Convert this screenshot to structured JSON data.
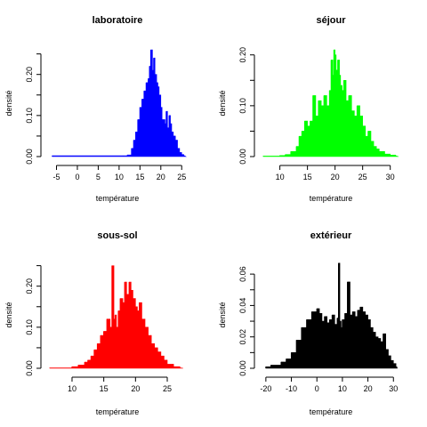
{
  "chart_data": [
    {
      "type": "histogram",
      "title": "laboratoire",
      "xlabel": "température",
      "ylabel": "densité",
      "color": "#0000ff",
      "xlim": [
        -6.6,
        25.8
      ],
      "ylim": [
        0,
        0.26
      ],
      "xticks": [
        -5,
        0,
        5,
        10,
        15,
        20,
        25
      ],
      "yticks": [
        0.0,
        0.1,
        0.2
      ],
      "yticks_minor": [
        0.05,
        0.15,
        0.25
      ],
      "x": [
        -6,
        11,
        12,
        13,
        13.5,
        14,
        14.5,
        15,
        15.5,
        16,
        16.5,
        17,
        17.3,
        17.6,
        18,
        18.3,
        18.6,
        19,
        19.3,
        19.6,
        20,
        20.3,
        20.6,
        21,
        21.3,
        21.6,
        22,
        22.3,
        22.6,
        23,
        23.5,
        24,
        24.5,
        25,
        25.5
      ],
      "y": [
        0.002,
        0.002,
        0.004,
        0.02,
        0.04,
        0.06,
        0.09,
        0.12,
        0.14,
        0.16,
        0.18,
        0.19,
        0.22,
        0.26,
        0.21,
        0.24,
        0.2,
        0.18,
        0.17,
        0.15,
        0.12,
        0.09,
        0.09,
        0.08,
        0.11,
        0.07,
        0.1,
        0.08,
        0.06,
        0.05,
        0.04,
        0.02,
        0.01,
        0.005,
        0.002
      ]
    },
    {
      "type": "histogram",
      "title": "séjour",
      "xlabel": "température",
      "ylabel": "densité",
      "color": "#00ff00",
      "xlim": [
        7,
        31.5
      ],
      "ylim": [
        0,
        0.21
      ],
      "xticks": [
        10,
        15,
        20,
        25,
        30
      ],
      "yticks": [
        0.0,
        0.1,
        0.2
      ],
      "yticks_minor": [
        0.05,
        0.15
      ],
      "x": [
        7,
        10,
        11,
        12,
        13,
        13.5,
        14,
        14.5,
        15,
        15.5,
        16,
        16.5,
        17,
        17.5,
        18,
        18.5,
        19,
        19.3,
        19.6,
        19.8,
        20,
        20.2,
        20.5,
        20.8,
        21,
        21.3,
        21.6,
        22,
        22.5,
        23,
        23.5,
        24,
        24.5,
        25,
        25.5,
        26,
        26.5,
        27,
        27.5,
        28,
        29,
        30,
        31
      ],
      "y": [
        0.001,
        0.002,
        0.004,
        0.01,
        0.02,
        0.04,
        0.05,
        0.07,
        0.06,
        0.07,
        0.12,
        0.08,
        0.11,
        0.1,
        0.12,
        0.1,
        0.13,
        0.19,
        0.16,
        0.21,
        0.2,
        0.17,
        0.19,
        0.16,
        0.14,
        0.13,
        0.15,
        0.11,
        0.12,
        0.09,
        0.08,
        0.1,
        0.08,
        0.06,
        0.04,
        0.05,
        0.03,
        0.02,
        0.015,
        0.01,
        0.005,
        0.003,
        0.001
      ]
    },
    {
      "type": "histogram",
      "title": "sous-sol",
      "xlabel": "température",
      "ylabel": "densité",
      "color": "#ff0000",
      "xlim": [
        6.5,
        27.8
      ],
      "ylim": [
        0,
        0.26
      ],
      "xticks": [
        10,
        15,
        20,
        25
      ],
      "yticks": [
        0.0,
        0.1,
        0.2
      ],
      "yticks_minor": [
        0.05,
        0.15,
        0.25
      ],
      "x": [
        6.5,
        10,
        11,
        12,
        12.5,
        13,
        13.5,
        14,
        14.5,
        15,
        15.5,
        16,
        16.3,
        16.6,
        16.8,
        17,
        17.3,
        17.6,
        18,
        18.3,
        18.6,
        19,
        19.3,
        19.6,
        20,
        20.3,
        20.6,
        21,
        21.5,
        22,
        22.5,
        23,
        23.5,
        24,
        24.5,
        25,
        26,
        27
      ],
      "y": [
        0.001,
        0.004,
        0.008,
        0.015,
        0.02,
        0.03,
        0.045,
        0.06,
        0.08,
        0.09,
        0.12,
        0.1,
        0.25,
        0.12,
        0.13,
        0.1,
        0.14,
        0.17,
        0.16,
        0.21,
        0.18,
        0.21,
        0.19,
        0.17,
        0.15,
        0.14,
        0.16,
        0.12,
        0.1,
        0.08,
        0.06,
        0.05,
        0.04,
        0.03,
        0.02,
        0.01,
        0.004,
        0.001
      ]
    },
    {
      "type": "histogram",
      "title": "extérieur",
      "xlabel": "température",
      "ylabel": "densité",
      "color": "#000000",
      "xlim": [
        -21,
        32
      ],
      "ylim": [
        0,
        0.068
      ],
      "xticks": [
        -20,
        -10,
        0,
        10,
        20,
        30
      ],
      "yticks": [
        0.0,
        0.02,
        0.04,
        0.06
      ],
      "yticks_minor": [
        0.01,
        0.03,
        0.05
      ],
      "x": [
        -20,
        -18,
        -16,
        -14,
        -12,
        -10,
        -8,
        -6,
        -4,
        -2,
        0,
        1,
        2,
        3,
        4,
        5,
        6,
        7,
        8,
        8.5,
        9,
        9.5,
        10,
        11,
        12,
        13,
        14,
        15,
        16,
        17,
        18,
        19,
        20,
        21,
        22,
        23,
        24,
        25,
        26,
        27,
        28,
        29,
        30,
        31
      ],
      "y": [
        0.001,
        0.002,
        0.002,
        0.004,
        0.006,
        0.01,
        0.018,
        0.026,
        0.031,
        0.036,
        0.038,
        0.035,
        0.03,
        0.033,
        0.029,
        0.031,
        0.034,
        0.028,
        0.032,
        0.067,
        0.03,
        0.026,
        0.031,
        0.035,
        0.055,
        0.034,
        0.036,
        0.033,
        0.037,
        0.039,
        0.036,
        0.034,
        0.031,
        0.026,
        0.023,
        0.02,
        0.019,
        0.017,
        0.022,
        0.012,
        0.008,
        0.005,
        0.003,
        0.001
      ]
    }
  ]
}
